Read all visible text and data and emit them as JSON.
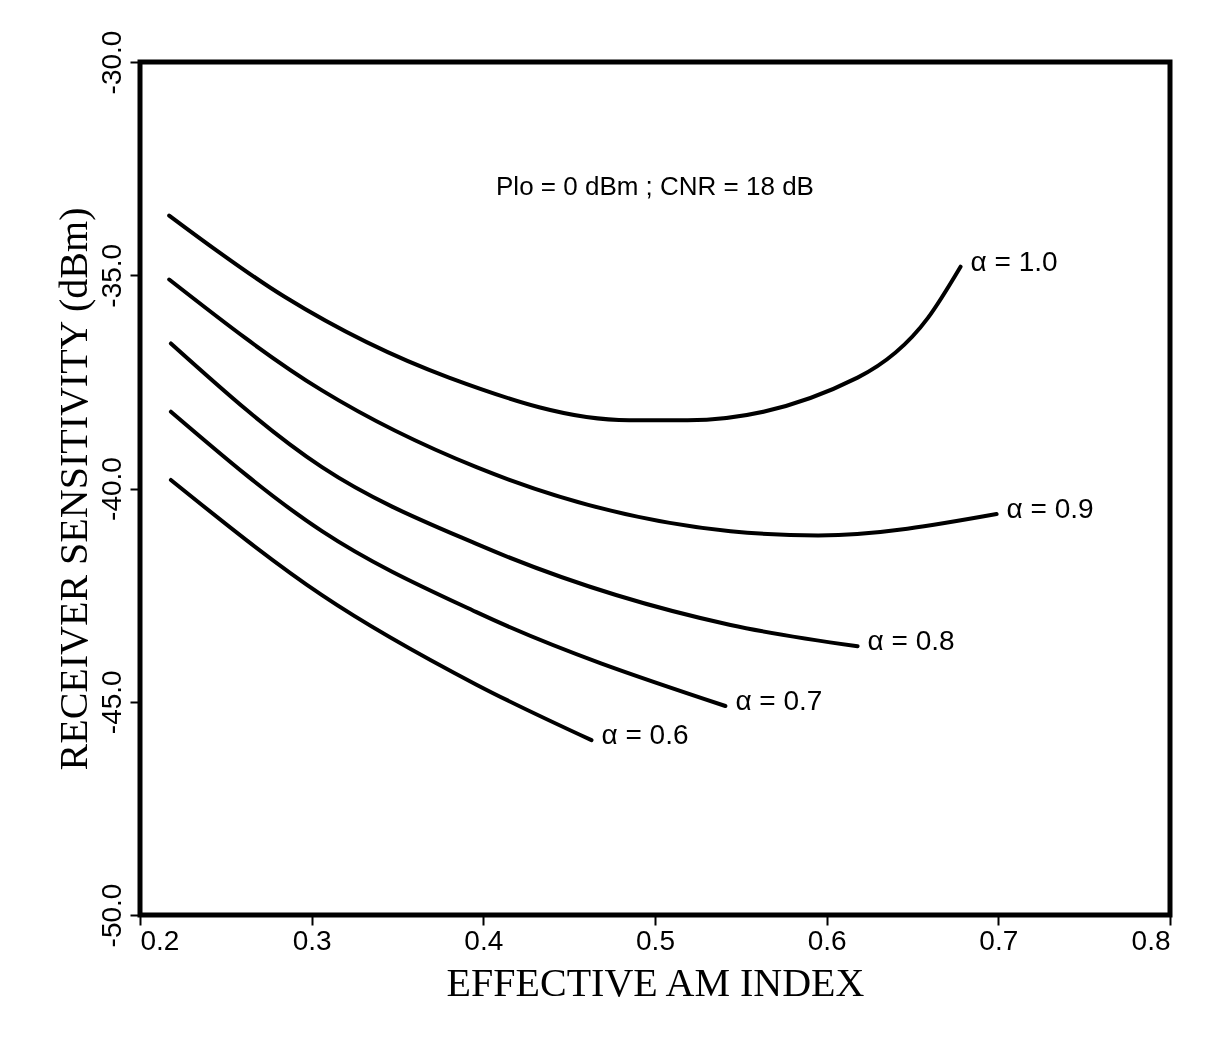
{
  "chart_data": {
    "type": "line",
    "xlabel": "EFFECTIVE AM INDEX",
    "ylabel": "RECEIVER SENSITIVITY (dBm)",
    "annotations": [
      "Plo = 0 dBm ; CNR = 18 dB"
    ],
    "xlim": [
      0.2,
      0.8
    ],
    "xticks": [
      0.2,
      0.3,
      0.4,
      0.5,
      0.6,
      0.7,
      0.8
    ],
    "ylim": [
      -50,
      -30
    ],
    "yticks": [
      {
        "value": -50,
        "label": "-50.0"
      },
      {
        "value": -45,
        "label": "-45.0"
      },
      {
        "value": -40,
        "label": "-40.0"
      },
      {
        "value": -35,
        "label": "-35.0"
      },
      {
        "value": -30,
        "label": "-30.0"
      }
    ],
    "grid": false,
    "marker": "none",
    "line_style": "solid",
    "series": [
      {
        "name": "α = 1.0",
        "color": "#000000",
        "x": [
          0.217,
          0.284,
          0.38,
          0.485,
          0.519,
          0.618,
          0.659,
          0.678
        ],
        "values": [
          -33.6,
          -35.5,
          -37.4,
          -38.4,
          -38.4,
          -37.4,
          -36.0,
          -34.8
        ]
      },
      {
        "name": "α = 0.9",
        "color": "#000000",
        "x": [
          0.217,
          0.306,
          0.396,
          0.544,
          0.595,
          0.699
        ],
        "values": [
          -35.1,
          -37.7,
          -39.5,
          -41.0,
          -41.1,
          -40.6
        ]
      },
      {
        "name": "α = 0.8",
        "color": "#000000",
        "x": [
          0.218,
          0.306,
          0.396,
          0.544,
          0.618
        ],
        "values": [
          -36.6,
          -39.5,
          -41.3,
          -43.2,
          -43.7
        ]
      },
      {
        "name": "α = 0.7",
        "color": "#000000",
        "x": [
          0.218,
          0.306,
          0.396,
          0.541
        ],
        "values": [
          -38.2,
          -41.0,
          -42.9,
          -45.1
        ]
      },
      {
        "name": "α = 0.6",
        "color": "#000000",
        "x": [
          0.218,
          0.306,
          0.396,
          0.463
        ],
        "values": [
          -39.8,
          -42.5,
          -44.6,
          -45.9
        ]
      }
    ]
  }
}
